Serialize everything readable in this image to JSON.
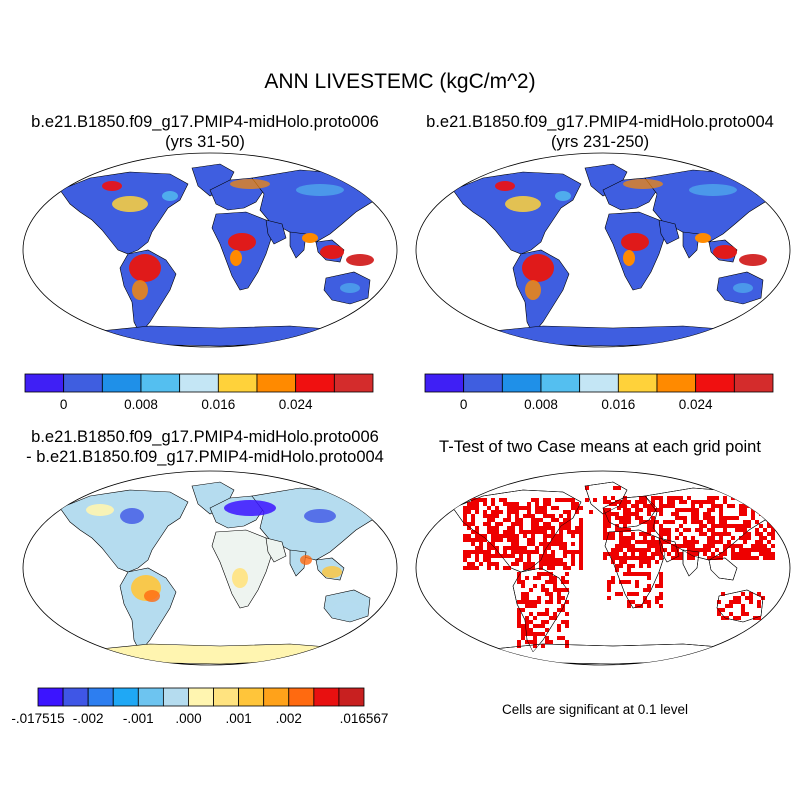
{
  "figure": {
    "title": "ANN LIVESTEMC (kgC/m^2)"
  },
  "panels": [
    {
      "id": "case1",
      "title_line1": "b.e21.B1850.f09_g17.PMIP4-midHolo.proto006",
      "title_line2": "(yrs 31-50)"
    },
    {
      "id": "case2",
      "title_line1": "b.e21.B1850.f09_g17.PMIP4-midHolo.proto004",
      "title_line2": "(yrs 231-250)"
    },
    {
      "id": "diff",
      "title_line1": "b.e21.B1850.f09_g17.PMIP4-midHolo.proto006",
      "title_line2": "- b.e21.B1850.f09_g17.PMIP4-midHolo.proto004"
    },
    {
      "id": "ttest",
      "title_line1": "T-Test of two Case means at each grid point",
      "note": "Cells are significant at 0.1 level"
    }
  ],
  "colorbars": {
    "case": {
      "colors": [
        "#3f1ff5",
        "#3f5ee0",
        "#1f90e8",
        "#54bff0",
        "#c4e6f5",
        "#ffd23a",
        "#ff8a00",
        "#f01010",
        "#d42c2c"
      ],
      "labels": [
        "0",
        "0.008",
        "0.016",
        "0.024"
      ],
      "label_boundaries": [
        1,
        3,
        5,
        7
      ]
    },
    "diff": {
      "colors": [
        "#3c14ff",
        "#3f56e6",
        "#2d7ef0",
        "#1fa8f5",
        "#6dc4f0",
        "#b5dcef",
        "#fff5b0",
        "#ffe380",
        "#ffc53a",
        "#ffa21a",
        "#ff6a10",
        "#e81010",
        "#c82020"
      ],
      "labels": [
        "-.017515",
        "-.002",
        "-.001",
        ".000",
        ".001",
        ".002",
        ".016567"
      ],
      "label_boundaries": [
        0,
        2,
        4,
        6,
        8,
        10,
        13
      ]
    }
  },
  "map_colors": {
    "ocean": "#ffffff",
    "outline": "#000000",
    "case_land_base": "#3f5ee0",
    "case_tropics": "#e01a1a",
    "diff_land_base": "#b5dcef",
    "diff_antarctica": "#fff5b0",
    "ttest_significant": "#ee0000"
  }
}
